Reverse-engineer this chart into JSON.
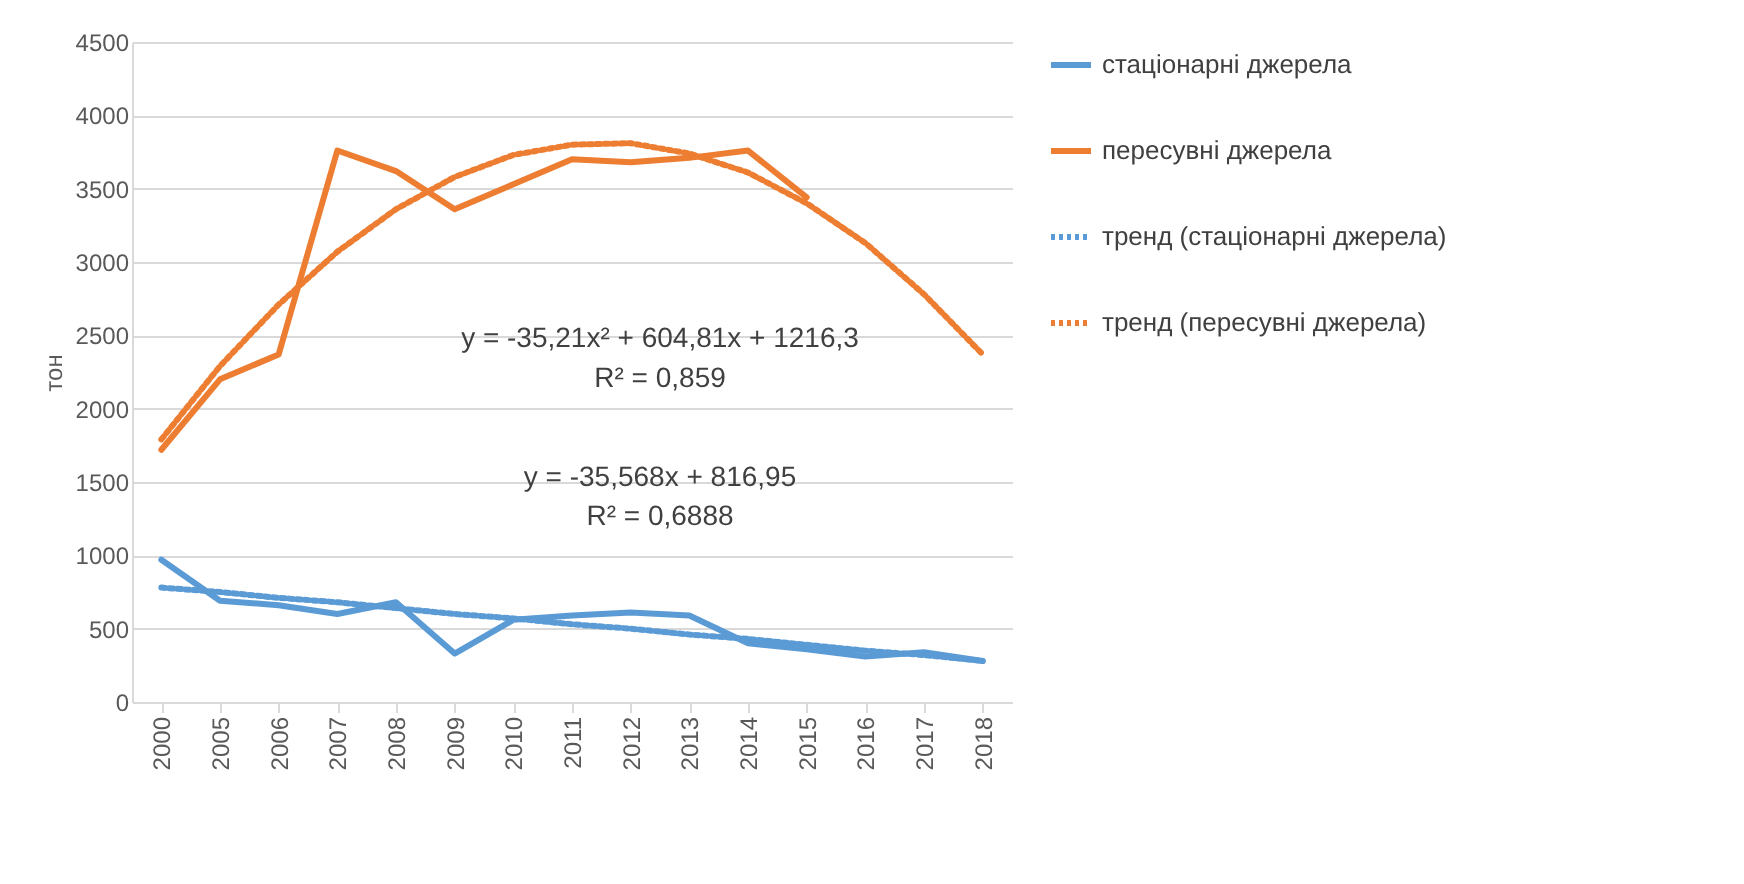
{
  "chart_data": {
    "type": "line",
    "ylabel": "тон",
    "categories": [
      "2000",
      "2005",
      "2006",
      "2007",
      "2008",
      "2009",
      "2010",
      "2011",
      "2012",
      "2013",
      "2014",
      "2015",
      "2016",
      "2017",
      "2018"
    ],
    "series": [
      {
        "name": "стаціонарні джерела",
        "color": "#5b9bd5",
        "values": [
          970,
          690,
          660,
          600,
          680,
          330,
          560,
          590,
          610,
          590,
          400,
          360,
          310,
          340,
          280
        ]
      },
      {
        "name": "пересувні джерела",
        "color": "#ed7d31",
        "values": [
          1720,
          2200,
          2370,
          3760,
          3620,
          3360,
          3530,
          3700,
          3680,
          3710,
          3760,
          3440,
          null,
          null,
          null
        ]
      },
      {
        "name": "тренд (стаціонарні джерела)",
        "color": "#5b9bd5",
        "line_style": "dotted",
        "values": [
          780,
          750,
          710,
          680,
          640,
          600,
          570,
          530,
          500,
          460,
          430,
          390,
          350,
          320,
          280
        ]
      },
      {
        "name": "тренд (пересувні джерела)",
        "color": "#ed7d31",
        "line_style": "dotted",
        "values": [
          1790,
          2290,
          2710,
          3070,
          3360,
          3580,
          3730,
          3800,
          3810,
          3740,
          3610,
          3400,
          3130,
          2780,
          2370
        ]
      }
    ],
    "ylim": [
      0,
      4500
    ],
    "yticks": [
      0,
      500,
      1000,
      1500,
      2000,
      2500,
      3000,
      3500,
      4000,
      4500
    ],
    "grid": "y",
    "legend": "right",
    "line_style": "solid",
    "annotations": [
      "y = -35,21x² + 604,81x + 1216,3",
      "R² = 0,859",
      "y = -35,568x + 816,95",
      "R² = 0,6888"
    ]
  }
}
